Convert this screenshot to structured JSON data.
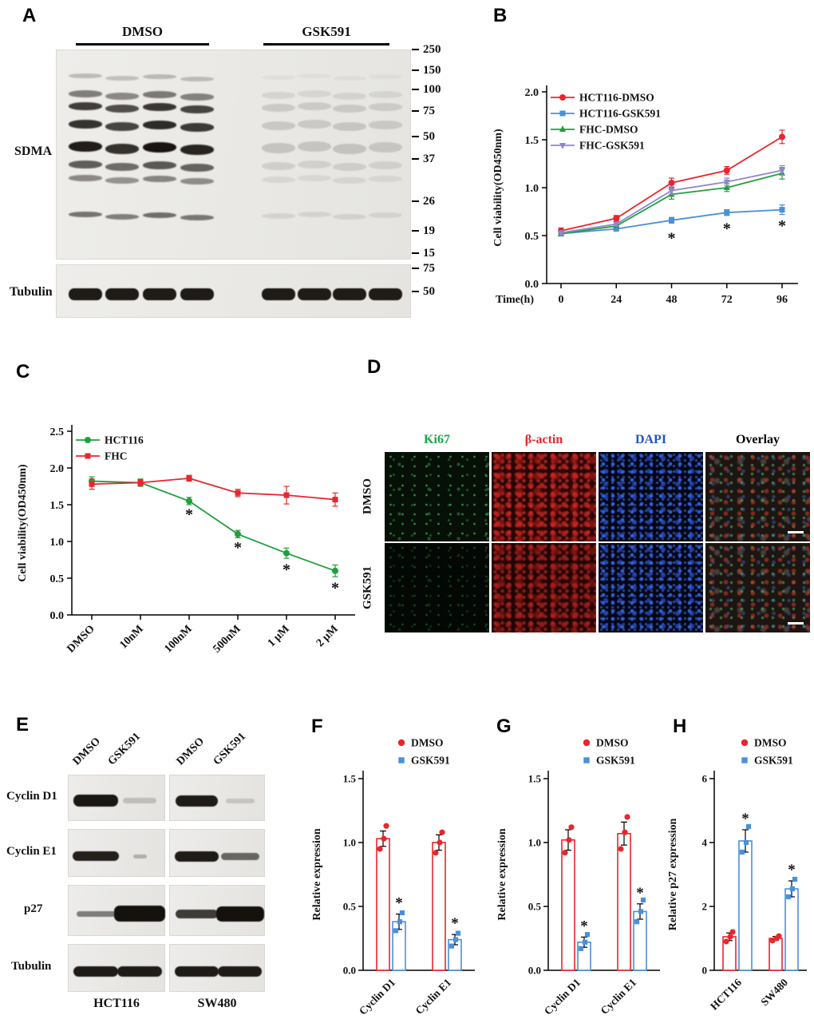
{
  "panelA": {
    "label": "A",
    "groups": [
      "DMSO",
      "GSK591"
    ],
    "blot_labels": {
      "sdma": "SDMA",
      "tubulin": "Tubulin"
    },
    "sdma_markers": [
      "250",
      "150",
      "100",
      "75",
      "50",
      "37",
      "26",
      "19",
      "15"
    ],
    "tubulin_markers": [
      "75",
      "50"
    ],
    "sdma_bands": [
      {
        "y": 0.13,
        "h": 6,
        "i": 0.22
      },
      {
        "y": 0.215,
        "h": 9,
        "i": 0.5
      },
      {
        "y": 0.275,
        "h": 10,
        "i": 0.8
      },
      {
        "y": 0.36,
        "h": 11,
        "i": 0.85
      },
      {
        "y": 0.465,
        "h": 13,
        "i": 0.95
      },
      {
        "y": 0.55,
        "h": 10,
        "i": 0.65
      },
      {
        "y": 0.615,
        "h": 8,
        "i": 0.45
      },
      {
        "y": 0.79,
        "h": 7,
        "i": 0.55
      }
    ],
    "gsk_factor": 0.17
  },
  "panelB": {
    "label": "B"
  },
  "panelC": {
    "label": "C"
  },
  "panelD": {
    "label": "D",
    "columns": [
      {
        "key": "ki67",
        "label": "Ki67",
        "color": "#17a84b"
      },
      {
        "key": "actin",
        "label": "β-actin",
        "color": "#e8262d"
      },
      {
        "key": "dapi",
        "label": "DAPI",
        "color": "#2053c5"
      },
      {
        "key": "overlay",
        "label": "Overlay",
        "color": "#000000"
      }
    ],
    "rows": [
      "DMSO",
      "GSK591"
    ]
  },
  "panelE": {
    "label": "E",
    "lane_labels": [
      "DMSO",
      "GSK591",
      "DMSO",
      "GSK591"
    ],
    "rows": [
      {
        "label": "Cyclin D1",
        "bands": [
          {
            "i": 0.97,
            "h": 15,
            "w": 0.46
          },
          {
            "i": 0.18,
            "h": 7,
            "w": 0.34
          },
          {
            "i": 0.95,
            "h": 14,
            "w": 0.44
          },
          {
            "i": 0.15,
            "h": 6,
            "w": 0.3
          }
        ]
      },
      {
        "label": "Cyclin E1",
        "bands": [
          {
            "i": 0.93,
            "h": 12,
            "w": 0.48
          },
          {
            "i": 0.25,
            "h": 5,
            "w": 0.14
          },
          {
            "i": 0.95,
            "h": 13,
            "w": 0.46
          },
          {
            "i": 0.6,
            "h": 9,
            "w": 0.4
          }
        ]
      },
      {
        "label": "p27",
        "bands": [
          {
            "i": 0.5,
            "h": 7,
            "w": 0.4
          },
          {
            "i": 1.0,
            "h": 20,
            "w": 0.52
          },
          {
            "i": 0.8,
            "h": 11,
            "w": 0.44
          },
          {
            "i": 1.0,
            "h": 19,
            "w": 0.5
          }
        ]
      },
      {
        "label": "Tubulin",
        "bands": [
          {
            "i": 0.95,
            "h": 13,
            "w": 0.46
          },
          {
            "i": 0.95,
            "h": 13,
            "w": 0.46
          },
          {
            "i": 0.95,
            "h": 13,
            "w": 0.46
          },
          {
            "i": 0.95,
            "h": 13,
            "w": 0.46
          }
        ]
      }
    ],
    "cell_lines": [
      "HCT116",
      "SW480"
    ]
  },
  "panelF": {
    "label": "F"
  },
  "panelG": {
    "label": "G"
  },
  "panelH": {
    "label": "H"
  },
  "chart_data": [
    {
      "id": "chartB",
      "type": "line",
      "title": "",
      "xlabel": "Time(h)",
      "ylabel": "Cell viability(OD450nm)",
      "x": [
        0,
        24,
        48,
        72,
        96
      ],
      "xtick_labels": [
        "0",
        "24",
        "48",
        "72",
        "96"
      ],
      "ylim": [
        0,
        2
      ],
      "yticks": [
        0,
        0.5,
        1,
        1.5,
        2
      ],
      "ytick_labels": [
        "0.0",
        "0.5",
        "1.0",
        "1.5",
        "2.0"
      ],
      "legend_position": "top-left",
      "series": [
        {
          "name": "HCT116-DMSO",
          "color": "#e8262d",
          "marker": "circle",
          "values": [
            0.55,
            0.68,
            1.05,
            1.18,
            1.53
          ],
          "errors": [
            0.03,
            0.03,
            0.05,
            0.04,
            0.07
          ]
        },
        {
          "name": "HCT116-GSK591",
          "color": "#4a90d9",
          "marker": "square",
          "values": [
            0.52,
            0.57,
            0.66,
            0.74,
            0.77
          ],
          "errors": [
            0.02,
            0.02,
            0.03,
            0.03,
            0.05
          ]
        },
        {
          "name": "FHC-DMSO",
          "color": "#1fa03c",
          "marker": "triangle",
          "values": [
            0.52,
            0.6,
            0.93,
            1.0,
            1.15
          ],
          "errors": [
            0.02,
            0.02,
            0.05,
            0.04,
            0.06
          ]
        },
        {
          "name": "FHC-GSK591",
          "color": "#9287cc",
          "marker": "triangle-down",
          "values": [
            0.53,
            0.62,
            0.97,
            1.06,
            1.18
          ],
          "errors": [
            0.02,
            0.02,
            0.04,
            0.04,
            0.05
          ]
        }
      ],
      "annotations": [
        {
          "x": 48,
          "y": 0.42,
          "text": "*"
        },
        {
          "x": 72,
          "y": 0.52,
          "text": "*"
        },
        {
          "x": 96,
          "y": 0.55,
          "text": "*"
        }
      ]
    },
    {
      "id": "chartC",
      "type": "line",
      "title": "",
      "xlabel": "",
      "ylabel": "Cell viability(OD450nm)",
      "categories": [
        "DMSO",
        "10nM",
        "100nM",
        "500nM",
        "1 μM",
        "2 μM"
      ],
      "ylim": [
        0,
        2.5
      ],
      "yticks": [
        0,
        0.5,
        1,
        1.5,
        2,
        2.5
      ],
      "ytick_labels": [
        "0.0",
        "0.5",
        "1.0",
        "1.5",
        "2.0",
        "2.5"
      ],
      "legend_position": "top-left",
      "series": [
        {
          "name": "HCT116",
          "color": "#1fa03c",
          "marker": "circle",
          "values": [
            1.82,
            1.8,
            1.55,
            1.1,
            0.84,
            0.6
          ],
          "errors": [
            0.06,
            0.05,
            0.05,
            0.05,
            0.07,
            0.08
          ]
        },
        {
          "name": "FHC",
          "color": "#e8262d",
          "marker": "square",
          "values": [
            1.78,
            1.8,
            1.86,
            1.66,
            1.63,
            1.57
          ],
          "errors": [
            0.07,
            0.04,
            0.04,
            0.05,
            0.12,
            0.09
          ]
        }
      ],
      "annotations": [
        {
          "xi": 2,
          "y": 1.3,
          "text": "*"
        },
        {
          "xi": 3,
          "y": 0.85,
          "text": "*"
        },
        {
          "xi": 4,
          "y": 0.55,
          "text": "*"
        },
        {
          "xi": 5,
          "y": 0.3,
          "text": "*"
        }
      ]
    },
    {
      "id": "chartF",
      "type": "bar",
      "ylabel": "Relative expression",
      "categories": [
        "Cyclin D1",
        "Cyclin E1"
      ],
      "ylim": [
        0,
        1.5
      ],
      "yticks": [
        0,
        0.5,
        1,
        1.5
      ],
      "ytick_labels": [
        "0.0",
        "0.5",
        "1.0",
        "1.5"
      ],
      "series": [
        {
          "name": "DMSO",
          "color": "#e8262d",
          "marker": "circle",
          "values": [
            1.03,
            1.0
          ],
          "errors": [
            0.06,
            0.06
          ],
          "points": [
            [
              0.95,
              1.03,
              1.13
            ],
            [
              0.92,
              1.0,
              1.08
            ]
          ]
        },
        {
          "name": "GSK591",
          "color": "#4a90d9",
          "marker": "square",
          "values": [
            0.38,
            0.24
          ],
          "errors": [
            0.06,
            0.04
          ],
          "points": [
            [
              0.31,
              0.38,
              0.45
            ],
            [
              0.19,
              0.24,
              0.29
            ]
          ]
        }
      ],
      "annotations": [
        {
          "cat": 0,
          "series": 1,
          "text": "*"
        },
        {
          "cat": 1,
          "series": 1,
          "text": "*"
        }
      ]
    },
    {
      "id": "chartG",
      "type": "bar",
      "ylabel": "Relative expression",
      "categories": [
        "Cyclin D1",
        "Cyclin E1"
      ],
      "ylim": [
        0,
        1.5
      ],
      "yticks": [
        0,
        0.5,
        1,
        1.5
      ],
      "ytick_labels": [
        "0.0",
        "0.5",
        "1.0",
        "1.5"
      ],
      "series": [
        {
          "name": "DMSO",
          "color": "#e8262d",
          "marker": "circle",
          "values": [
            1.02,
            1.07
          ],
          "errors": [
            0.08,
            0.09
          ],
          "points": [
            [
              0.92,
              1.02,
              1.12
            ],
            [
              0.95,
              1.08,
              1.2
            ]
          ]
        },
        {
          "name": "GSK591",
          "color": "#4a90d9",
          "marker": "square",
          "values": [
            0.22,
            0.46
          ],
          "errors": [
            0.04,
            0.06
          ],
          "points": [
            [
              0.17,
              0.22,
              0.28
            ],
            [
              0.38,
              0.46,
              0.55
            ]
          ]
        }
      ],
      "annotations": [
        {
          "cat": 0,
          "series": 1,
          "text": "*"
        },
        {
          "cat": 1,
          "series": 1,
          "text": "*"
        }
      ]
    },
    {
      "id": "chartH",
      "type": "bar",
      "ylabel": "Relative p27 expression",
      "categories": [
        "HCT116",
        "SW480"
      ],
      "ylim": [
        0,
        6
      ],
      "yticks": [
        0,
        2,
        4,
        6
      ],
      "ytick_labels": [
        "0",
        "2",
        "4",
        "6"
      ],
      "series": [
        {
          "name": "DMSO",
          "color": "#e8262d",
          "marker": "circle",
          "values": [
            1.05,
            1.0
          ],
          "errors": [
            0.12,
            0.06
          ],
          "points": [
            [
              0.9,
              1.05,
              1.2
            ],
            [
              0.93,
              1.0,
              1.07
            ]
          ]
        },
        {
          "name": "GSK591",
          "color": "#4a90d9",
          "marker": "square",
          "values": [
            4.05,
            2.55
          ],
          "errors": [
            0.35,
            0.25
          ],
          "points": [
            [
              3.7,
              4.0,
              4.5
            ],
            [
              2.3,
              2.55,
              2.85
            ]
          ]
        }
      ],
      "annotations": [
        {
          "cat": 0,
          "series": 1,
          "text": "*"
        },
        {
          "cat": 1,
          "series": 1,
          "text": "*"
        }
      ]
    }
  ]
}
